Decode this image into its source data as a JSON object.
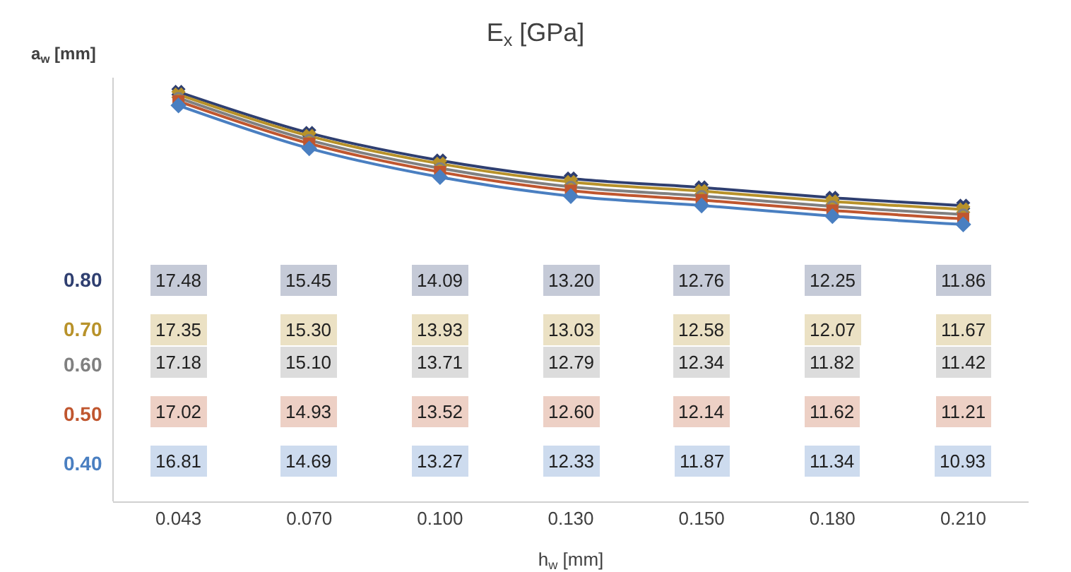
{
  "chart_data": {
    "type": "line",
    "title": "E$_{x}$ [GPa]",
    "xlabel": "h$_{w}$ [mm]",
    "ylabel": "a$_{w}$ [mm]",
    "categories": [
      "0.043",
      "0.070",
      "0.100",
      "0.130",
      "0.150",
      "0.180",
      "0.210"
    ],
    "series": [
      {
        "name": "0.80",
        "color": "#2f3f70",
        "marker": "cross",
        "values": [
          17.48,
          15.45,
          14.09,
          13.2,
          12.76,
          12.25,
          11.86
        ],
        "value_labels": [
          "17.48",
          "15.45",
          "14.09",
          "13.20",
          "12.76",
          "12.25",
          "11.86"
        ]
      },
      {
        "name": "0.70",
        "color": "#b8922a",
        "marker": "cross",
        "values": [
          17.35,
          15.3,
          13.93,
          13.03,
          12.58,
          12.07,
          11.67
        ],
        "value_labels": [
          "17.35",
          "15.30",
          "13.93",
          "13.03",
          "12.58",
          "12.07",
          "11.67"
        ]
      },
      {
        "name": "0.60",
        "color": "#808080",
        "marker": "circle",
        "values": [
          17.18,
          15.1,
          13.71,
          12.79,
          12.34,
          11.82,
          11.42
        ],
        "value_labels": [
          "17.18",
          "15.10",
          "13.71",
          "12.79",
          "12.34",
          "11.82",
          "11.42"
        ]
      },
      {
        "name": "0.50",
        "color": "#c0562f",
        "marker": "square",
        "values": [
          17.02,
          14.93,
          13.52,
          12.6,
          12.14,
          11.62,
          11.21
        ],
        "value_labels": [
          "17.02",
          "14.93",
          "13.52",
          "12.60",
          "12.14",
          "11.62",
          "11.21"
        ]
      },
      {
        "name": "0.40",
        "color": "#4a7fc1",
        "marker": "diamond",
        "values": [
          16.81,
          14.69,
          13.27,
          12.33,
          11.87,
          11.34,
          10.93
        ],
        "value_labels": [
          "16.81",
          "14.69",
          "13.27",
          "12.33",
          "11.87",
          "11.34",
          "10.93"
        ]
      }
    ],
    "grid": false,
    "legend": false
  }
}
